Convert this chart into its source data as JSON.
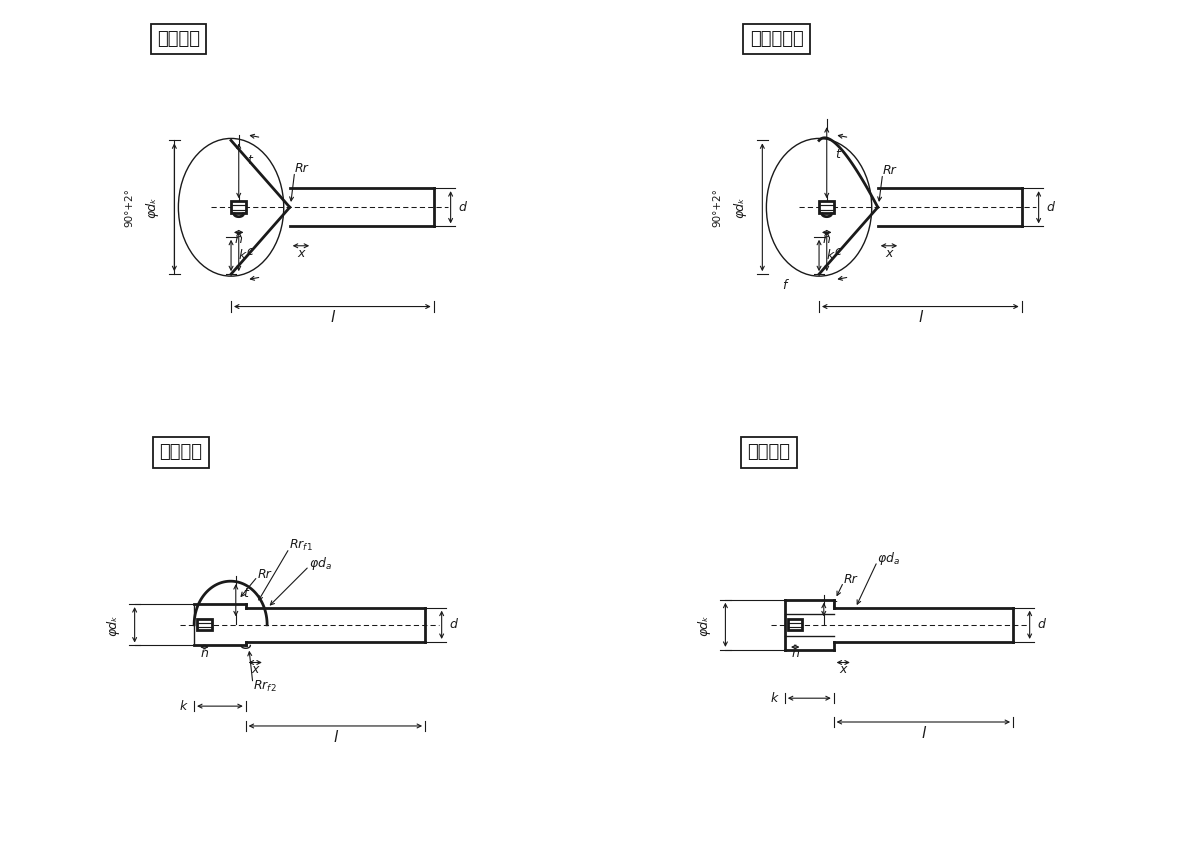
{
  "bg_color": "#ffffff",
  "line_color": "#1a1a1a",
  "titles": [
    "皿小ねじ",
    "丸皿小ねじ",
    "丸小ねじ",
    "平小ねじ"
  ],
  "font_size_title": 13,
  "font_size_label": 9,
  "lw_thick": 2.0,
  "lw_thin": 1.0,
  "lw_dim": 0.8
}
